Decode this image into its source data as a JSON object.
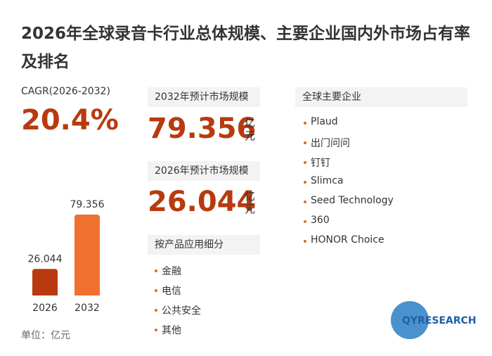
{
  "title": "2026年全球录音卡行业总体规模、主要企业国内外市场占有率及排名",
  "cagr": {
    "label": "CAGR(2026-2032)",
    "value": "20.4%"
  },
  "market_2032": {
    "label": "2032年预计市场规模",
    "value": "79.356",
    "unit": "亿元"
  },
  "market_2026": {
    "label": "2026年预计市场规模",
    "value": "26.044",
    "unit": "亿元"
  },
  "segments": {
    "title": "按产品应用细分",
    "items": [
      "金融",
      "电信",
      "公共安全",
      "其他"
    ]
  },
  "companies": {
    "title": "全球主要企业",
    "items": [
      "Plaud",
      "出门问问",
      "钉钉",
      "Slimca",
      "Seed Technology",
      "360",
      "HONOR Choice"
    ]
  },
  "unit_note": "单位：亿元",
  "logo": "QYRESEARCH",
  "chart_data": {
    "type": "bar",
    "categories": [
      "2026",
      "2032"
    ],
    "values": [
      26.044,
      79.356
    ],
    "colors": [
      "#b83a0e",
      "#f07030"
    ]
  }
}
